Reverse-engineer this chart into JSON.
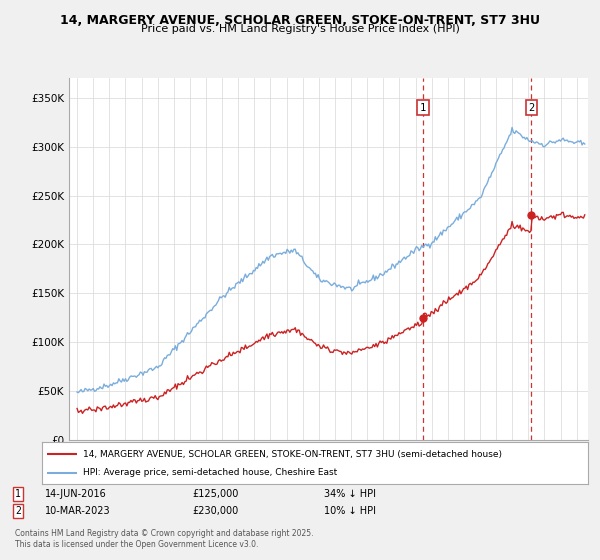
{
  "title1": "14, MARGERY AVENUE, SCHOLAR GREEN, STOKE-ON-TRENT, ST7 3HU",
  "title2": "Price paid vs. HM Land Registry's House Price Index (HPI)",
  "ylabel_ticks": [
    "£0",
    "£50K",
    "£100K",
    "£150K",
    "£200K",
    "£250K",
    "£300K",
    "£350K"
  ],
  "ytick_values": [
    0,
    50000,
    100000,
    150000,
    200000,
    250000,
    300000,
    350000
  ],
  "ylim": [
    0,
    370000
  ],
  "xlim_start": 1994.5,
  "xlim_end": 2026.7,
  "background_color": "#f0f0f0",
  "plot_bg_color": "#ffffff",
  "hpi_color": "#7aaddc",
  "price_color": "#cc2222",
  "dashed_line_color": "#cc3333",
  "marker1_x": 2016.45,
  "marker1_y": 125000,
  "marker2_x": 2023.19,
  "marker2_y": 230000,
  "legend_line1": "14, MARGERY AVENUE, SCHOLAR GREEN, STOKE-ON-TRENT, ST7 3HU (semi-detached house)",
  "legend_line2": "HPI: Average price, semi-detached house, Cheshire East",
  "annotation1_label": "1",
  "annotation1_date": "14-JUN-2016",
  "annotation1_price": "£125,000",
  "annotation1_hpi": "34% ↓ HPI",
  "annotation2_label": "2",
  "annotation2_date": "10-MAR-2023",
  "annotation2_price": "£230,000",
  "annotation2_hpi": "10% ↓ HPI",
  "footer": "Contains HM Land Registry data © Crown copyright and database right 2025.\nThis data is licensed under the Open Government Licence v3.0."
}
